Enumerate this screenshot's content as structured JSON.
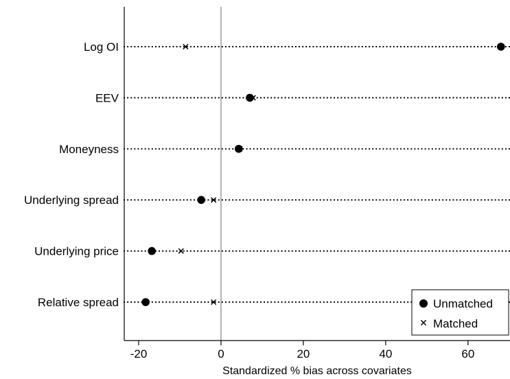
{
  "chart_data": {
    "type": "scatter",
    "title": "",
    "xlabel": "Standardized % bias across covariates",
    "ylabel": "",
    "xlim": [
      -23.5,
      70.2
    ],
    "xticks": [
      -20,
      0,
      20,
      40,
      60
    ],
    "grid": false,
    "legend_position": "bottom-right",
    "categories": [
      "Log OI",
      "EEV",
      "Moneyness",
      "Underlying spread",
      "Underlying price",
      "Relative spread"
    ],
    "reference_line_x": 0,
    "series": [
      {
        "name": "Unmatched",
        "marker": "circle",
        "values": [
          68.0,
          7.0,
          4.3,
          -4.8,
          -16.8,
          -18.3
        ]
      },
      {
        "name": "Matched",
        "marker": "x",
        "values": [
          -8.6,
          7.8,
          4.6,
          -1.8,
          -9.7,
          -1.8
        ]
      }
    ]
  }
}
